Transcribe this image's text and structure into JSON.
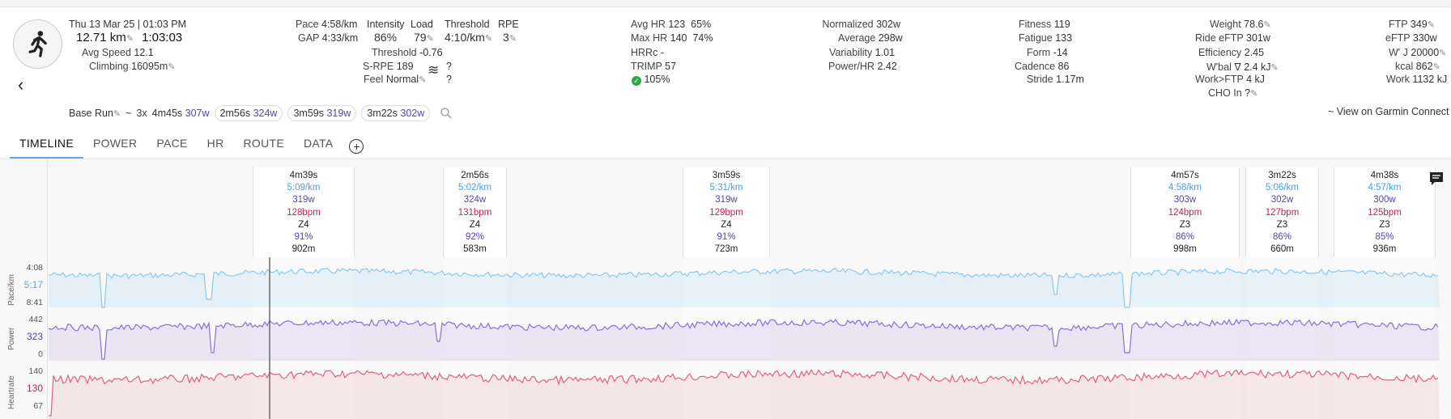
{
  "activity": {
    "date": "Thu 13 Mar 25",
    "time": "01:03 PM",
    "distance": "12.71 km",
    "duration": "1:03:03",
    "avg_speed_label": "Avg Speed",
    "avg_speed": "12.1",
    "climbing_label": "Climbing",
    "climbing": "16095m",
    "type_icon": "runner-icon"
  },
  "pace_block": {
    "pace_label": "Pace",
    "pace": "4:58/km",
    "gap_label": "GAP",
    "gap": "4:33/km",
    "intensity_label": "Intensity",
    "intensity": "86%",
    "load_label": "Load",
    "load": "79",
    "threshold_label": "Threshold",
    "threshold": "4:10/km",
    "rpe_label": "RPE",
    "rpe": "3",
    "threshold2_label": "Threshold",
    "threshold2": "-0.76",
    "srpe_label": "S-RPE",
    "srpe": "189",
    "feel_label": "Feel",
    "feel": "Normal",
    "q1": "?",
    "q2": "?"
  },
  "hr_block": {
    "avg_hr_label": "Avg HR",
    "avg_hr": "123",
    "avg_hr_pct": "65%",
    "max_hr_label": "Max HR",
    "max_hr": "140",
    "max_hr_pct": "74%",
    "hrrc_label": "HRRc",
    "hrrc": "-",
    "trimp_label": "TRIMP",
    "trimp": "57",
    "check_pct": "105%"
  },
  "power_block": {
    "normalized_label": "Normalized",
    "normalized": "302w",
    "average_label": "Average",
    "average": "298w",
    "variability_label": "Variability",
    "variability": "1.01",
    "powerhr_label": "Power/HR",
    "powerhr": "2.42"
  },
  "fitness_block": {
    "fitness_label": "Fitness",
    "fitness": "119",
    "fatigue_label": "Fatigue",
    "fatigue": "133",
    "form_label": "Form",
    "form": "-14",
    "cadence_label": "Cadence",
    "cadence": "86",
    "stride_label": "Stride",
    "stride": "1.17m"
  },
  "weight_block": {
    "weight_label": "Weight",
    "weight": "78.6",
    "ride_eftp_label": "Ride eFTP",
    "ride_eftp": "301w",
    "efficiency_label": "Efficiency",
    "efficiency": "2.45",
    "wbal_label": "W'bal ∇",
    "wbal": "2.4 kJ",
    "work_ftp_label": "Work>FTP",
    "work_ftp": "4 kJ",
    "cho_label": "CHO In",
    "cho": "?"
  },
  "ftp_block": {
    "ftp_label": "FTP",
    "ftp": "349",
    "eftp_label": "eFTP",
    "eftp": "330w",
    "wj_label": "W' J",
    "wj": "20000",
    "kcal_label": "kcal",
    "kcal": "862",
    "work_label": "Work",
    "work": "1132 kJ"
  },
  "workout": {
    "name": "Base Run",
    "tilde": "~",
    "reps": "3x",
    "chips": [
      {
        "time": "4m45s",
        "watts": "307w"
      },
      {
        "time": "2m56s",
        "watts": "324w"
      },
      {
        "time": "3m59s",
        "watts": "319w"
      },
      {
        "time": "3m22s",
        "watts": "302w"
      }
    ],
    "garmin_link": "~ View on Garmin Connect"
  },
  "tabs": [
    "TIMELINE",
    "POWER",
    "PACE",
    "HR",
    "ROUTE",
    "DATA"
  ],
  "intervals": [
    {
      "dur": "4m39s",
      "pace": "5:09/km",
      "watts": "319w",
      "bpm": "128bpm",
      "zone": "Z4",
      "pct": "91%",
      "dist": "902m"
    },
    {
      "dur": "2m56s",
      "pace": "5:02/km",
      "watts": "324w",
      "bpm": "131bpm",
      "zone": "Z4",
      "pct": "92%",
      "dist": "583m"
    },
    {
      "dur": "3m59s",
      "pace": "5:31/km",
      "watts": "319w",
      "bpm": "129bpm",
      "zone": "Z4",
      "pct": "91%",
      "dist": "723m"
    },
    {
      "dur": "4m57s",
      "pace": "4:58/km",
      "watts": "303w",
      "bpm": "124bpm",
      "zone": "Z3",
      "pct": "86%",
      "dist": "998m"
    },
    {
      "dur": "3m22s",
      "pace": "5:06/km",
      "watts": "302w",
      "bpm": "127bpm",
      "zone": "Z3",
      "pct": "86%",
      "dist": "660m"
    },
    {
      "dur": "4m38s",
      "pace": "4:57/km",
      "watts": "300w",
      "bpm": "125bpm",
      "zone": "Z3",
      "pct": "85%",
      "dist": "936m"
    }
  ],
  "charts": {
    "pace": {
      "label": "Pace/km",
      "ticks": [
        "4:08",
        "5:17",
        "8:41"
      ],
      "color": "#8cc8ee"
    },
    "power": {
      "label": "Power",
      "ticks": [
        "442",
        "323",
        "0"
      ],
      "color": "#8b6fd6"
    },
    "hr": {
      "label": "Heartrate",
      "ticks": [
        "140",
        "130",
        "67"
      ],
      "color": "#e0607e"
    }
  },
  "colors": {
    "accent": "#6aa8e8",
    "pace": "#4a9fe0",
    "power": "#5b3fb5",
    "hr": "#c0244c"
  }
}
